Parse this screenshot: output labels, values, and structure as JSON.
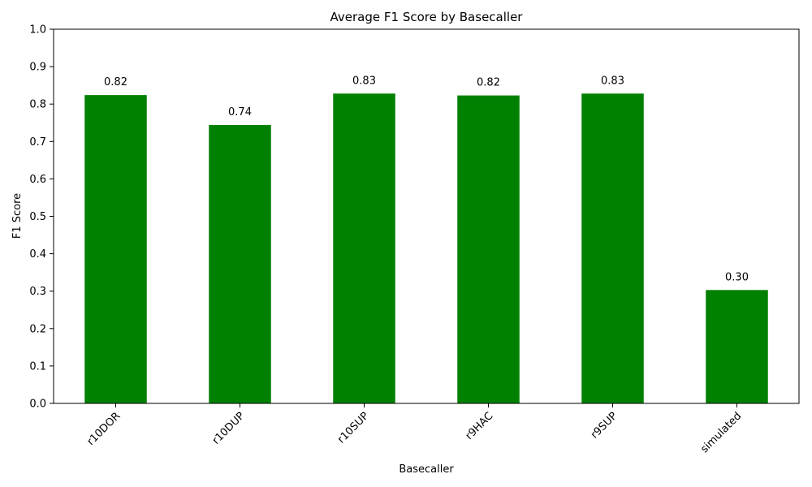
{
  "chart_data": {
    "type": "bar",
    "title": "Average F1 Score by Basecaller",
    "xlabel": "Basecaller",
    "ylabel": "F1 Score",
    "categories": [
      "r10DOR",
      "r10DUP",
      "r10SUP",
      "r9HAC",
      "r9SUP",
      "simulated"
    ],
    "values": [
      0.824,
      0.744,
      0.828,
      0.823,
      0.828,
      0.303
    ],
    "data_labels": [
      "0.82",
      "0.74",
      "0.83",
      "0.82",
      "0.83",
      "0.30"
    ],
    "ylim": [
      0,
      1.0
    ],
    "yticks": [
      "0.0",
      "0.1",
      "0.2",
      "0.3",
      "0.4",
      "0.5",
      "0.6",
      "0.7",
      "0.8",
      "0.9",
      "1.0"
    ],
    "bar_color": "#008000",
    "grid": false,
    "legend": "none",
    "x_tick_rotation": "45deg"
  }
}
